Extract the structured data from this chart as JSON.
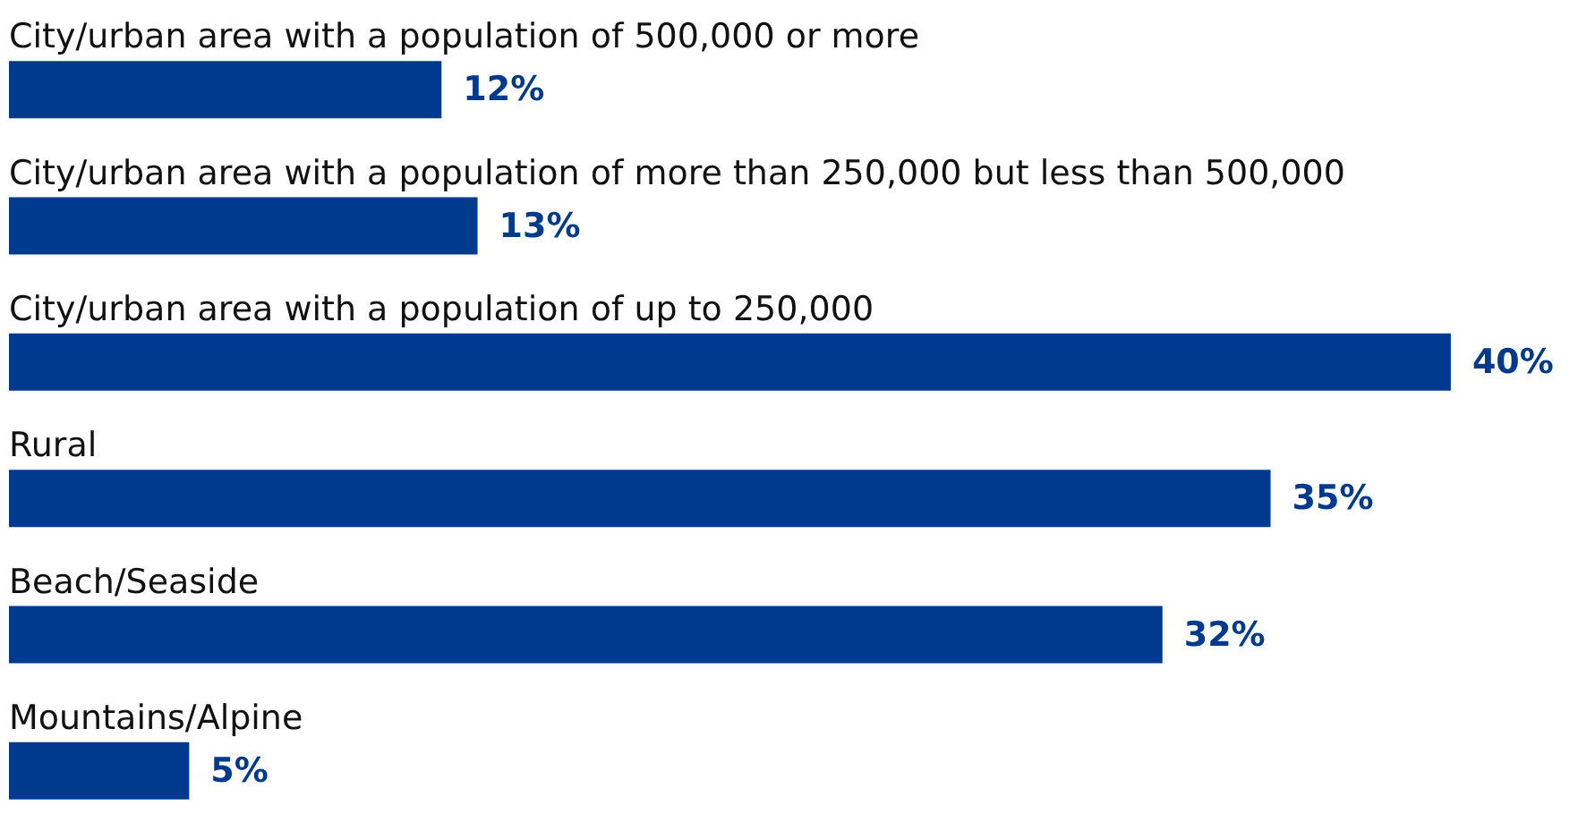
{
  "chart_data": {
    "type": "bar",
    "orientation": "horizontal",
    "categories": [
      "City/urban area with a population of 500,000 or more",
      "City/urban area with a population of more than 250,000 but less than 500,000",
      "City/urban area with a population of up to 250,000",
      "Rural",
      "Beach/Seaside",
      "Mountains/Alpine"
    ],
    "values": [
      12,
      13,
      40,
      35,
      32,
      5
    ],
    "value_labels": [
      "12%",
      "13%",
      "40%",
      "35%",
      "32%",
      "5%"
    ],
    "color": "#003a8f",
    "grid": false
  }
}
